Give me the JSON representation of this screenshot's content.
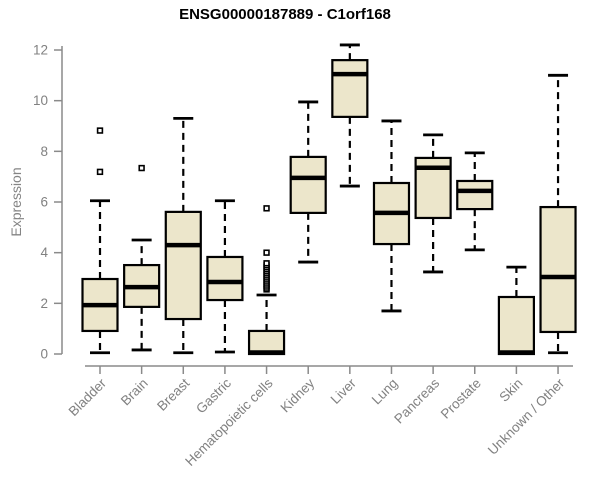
{
  "chart_data": {
    "type": "boxplot",
    "title": "ENSG00000187889 - C1orf168",
    "ylabel": "Expression",
    "xlabel": "",
    "ylim": [
      0,
      12
    ],
    "yticks": [
      0,
      2,
      4,
      6,
      8,
      10,
      12
    ],
    "grid": false,
    "legend": false,
    "categories": [
      "Bladder",
      "Brain",
      "Breast",
      "Gastric",
      "Hematopoietic cells",
      "Kidney",
      "Liver",
      "Lung",
      "Pancreas",
      "Prostate",
      "Skin",
      "Unknown / Other"
    ],
    "series": [
      {
        "category": "Bladder",
        "whisker_low": 0.05,
        "q1": 0.91,
        "median": 1.93,
        "q3": 2.96,
        "whisker_high": 6.05,
        "outliers": [
          7.19,
          8.82
        ]
      },
      {
        "category": "Brain",
        "whisker_low": 0.16,
        "q1": 1.86,
        "median": 2.64,
        "q3": 3.51,
        "whisker_high": 4.5,
        "outliers": [
          7.34
        ]
      },
      {
        "category": "Breast",
        "whisker_low": 0.05,
        "q1": 1.38,
        "median": 4.3,
        "q3": 5.61,
        "whisker_high": 9.3,
        "outliers": []
      },
      {
        "category": "Gastric",
        "whisker_low": 0.08,
        "q1": 2.13,
        "median": 2.84,
        "q3": 3.83,
        "whisker_high": 6.05,
        "outliers": []
      },
      {
        "category": "Hematopoietic cells",
        "whisker_low": 0.0,
        "q1": 0.0,
        "median": 0.06,
        "q3": 0.91,
        "whisker_high": 2.33,
        "outliers": [
          2.55,
          2.62,
          2.7,
          2.78,
          2.86,
          2.94,
          3.02,
          3.1,
          3.18,
          3.26,
          3.34,
          3.42,
          3.5,
          3.58,
          4.0,
          5.75
        ]
      },
      {
        "category": "Kidney",
        "whisker_low": 3.63,
        "q1": 5.57,
        "median": 6.95,
        "q3": 7.78,
        "whisker_high": 9.95,
        "outliers": []
      },
      {
        "category": "Liver",
        "whisker_low": 6.63,
        "q1": 9.36,
        "median": 11.05,
        "q3": 11.6,
        "whisker_high": 12.2,
        "outliers": []
      },
      {
        "category": "Lung",
        "whisker_low": 1.7,
        "q1": 4.34,
        "median": 5.57,
        "q3": 6.75,
        "whisker_high": 9.2,
        "outliers": []
      },
      {
        "category": "Pancreas",
        "whisker_low": 3.24,
        "q1": 5.37,
        "median": 7.35,
        "q3": 7.74,
        "whisker_high": 8.65,
        "outliers": []
      },
      {
        "category": "Prostate",
        "whisker_low": 4.11,
        "q1": 5.72,
        "median": 6.44,
        "q3": 6.83,
        "whisker_high": 7.94,
        "outliers": []
      },
      {
        "category": "Skin",
        "whisker_low": 0.0,
        "q1": 0.0,
        "median": 0.06,
        "q3": 2.25,
        "whisker_high": 3.43,
        "outliers": []
      },
      {
        "category": "Unknown / Other",
        "whisker_low": 0.05,
        "q1": 0.87,
        "median": 3.04,
        "q3": 5.8,
        "whisker_high": 11.0,
        "outliers": []
      }
    ],
    "colors": {
      "box_fill": "#ece6cb",
      "box_border": "#000000",
      "median": "#000000",
      "whisker": "#000000",
      "axis_line": "#8a8a8a",
      "tick_text": "#818181",
      "title_text": "#000000",
      "background": "#ffffff"
    }
  }
}
